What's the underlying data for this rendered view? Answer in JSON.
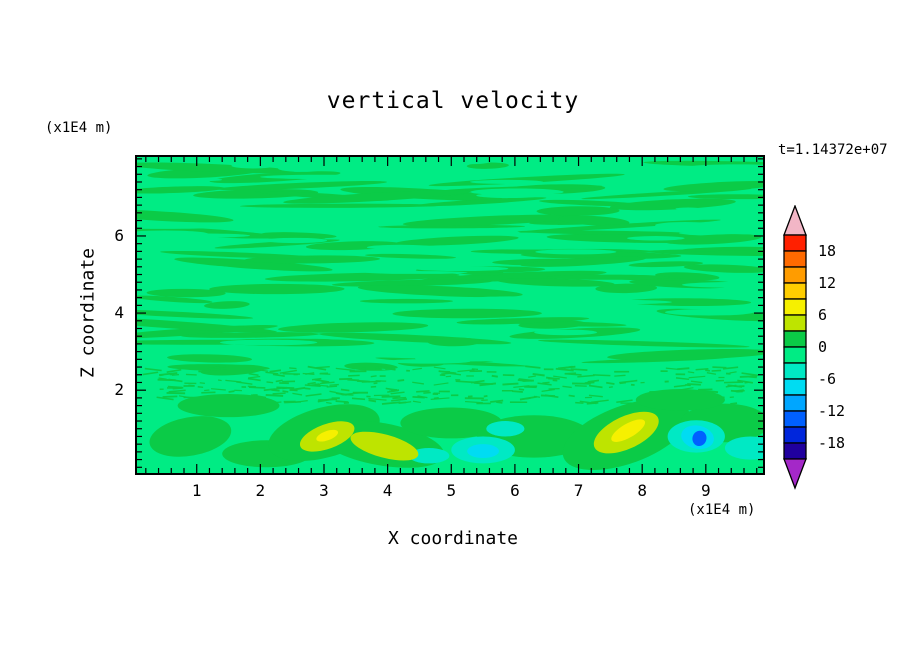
{
  "chart_data": {
    "type": "heatmap",
    "title": "vertical velocity",
    "xlabel": "X coordinate",
    "ylabel": "Z coordinate",
    "x_units": "(x1E4 m)",
    "y_units": "(x1E4 m)",
    "time_annotation": "t=1.14372e+07",
    "xlim": [
      0.03,
      9.93
    ],
    "zlim": [
      -0.2,
      8.1
    ],
    "x_ticks": [
      1,
      2,
      3,
      4,
      5,
      6,
      7,
      8,
      9
    ],
    "y_ticks": [
      2,
      4,
      6
    ],
    "minor_tick_step": 0.2,
    "background_level_color": "#00EC84",
    "contour_green": "#0BCB47",
    "frame_color": "#000000",
    "field_summary": "Mostly near-zero vertical velocity (spring green) with elongated positive streaks aloft, a finely rippled band near z=2, and stronger updraft (yellow) and downdraft (cyan/blue) cells below z=2.",
    "colorbar": {
      "boundaries": [
        21,
        18,
        15,
        12,
        9,
        6,
        3,
        0,
        -3,
        -6,
        -9,
        -12,
        -15,
        -18,
        -21
      ],
      "colors": [
        "#FF2000",
        "#FF6A00",
        "#FF9C00",
        "#FFCE00",
        "#F6F000",
        "#BEE400",
        "#0BCB47",
        "#00EC84",
        "#00E9C4",
        "#00DCF2",
        "#00A6FF",
        "#0060FF",
        "#0026DC",
        "#20009E"
      ],
      "over_color": "#F2B6C6",
      "under_color": "#A428C8",
      "tick_labels": [
        "18",
        "12",
        "6",
        "0",
        "-6",
        "-12",
        "-18"
      ]
    },
    "texture": {
      "seed": 42,
      "streaks": 95,
      "holes": 40,
      "speckles": 300,
      "streak_zone": [
        2.5,
        7.95
      ],
      "speckle_zone": [
        1.65,
        2.6
      ]
    },
    "features": [
      {
        "x": 0.9,
        "z": 0.8,
        "rx": 0.65,
        "rz": 0.5,
        "rot": -10,
        "level": 1.5
      },
      {
        "x": 2.1,
        "z": 0.35,
        "rx": 0.7,
        "rz": 0.35,
        "rot": 0,
        "level": 1.5
      },
      {
        "x": 3.0,
        "z": 0.9,
        "rx": 0.9,
        "rz": 0.65,
        "rot": -15,
        "level": 1.5
      },
      {
        "x": 3.9,
        "z": 0.6,
        "rx": 1.0,
        "rz": 0.55,
        "rot": 10,
        "level": 1.5
      },
      {
        "x": 5.0,
        "z": 1.15,
        "rx": 0.8,
        "rz": 0.4,
        "rot": 0,
        "level": 1.5
      },
      {
        "x": 6.3,
        "z": 0.8,
        "rx": 0.9,
        "rz": 0.55,
        "rot": 0,
        "level": 1.5
      },
      {
        "x": 7.75,
        "z": 0.85,
        "rx": 1.05,
        "rz": 0.75,
        "rot": -20,
        "level": 1.5
      },
      {
        "x": 9.3,
        "z": 1.15,
        "rx": 0.7,
        "rz": 0.5,
        "rot": 0,
        "level": 1.5
      },
      {
        "x": 1.5,
        "z": 1.6,
        "rx": 0.8,
        "rz": 0.3,
        "rot": 0,
        "level": 1.5
      },
      {
        "x": 8.6,
        "z": 1.75,
        "rx": 0.7,
        "rz": 0.28,
        "rot": 0,
        "level": 1.5
      },
      {
        "x": 4.65,
        "z": 0.3,
        "rx": 0.32,
        "rz": 0.2,
        "rot": 0,
        "level": -4.5
      },
      {
        "x": 5.5,
        "z": 0.45,
        "rx": 0.5,
        "rz": 0.35,
        "rot": 0,
        "level": -4.5
      },
      {
        "x": 5.85,
        "z": 1.0,
        "rx": 0.3,
        "rz": 0.2,
        "rot": 0,
        "level": -4.5
      },
      {
        "x": 8.85,
        "z": 0.8,
        "rx": 0.45,
        "rz": 0.42,
        "rot": 0,
        "level": -4.5
      },
      {
        "x": 9.7,
        "z": 0.5,
        "rx": 0.4,
        "rz": 0.3,
        "rot": 0,
        "level": -4.5
      },
      {
        "x": 5.5,
        "z": 0.42,
        "rx": 0.25,
        "rz": 0.18,
        "rot": 0,
        "level": -7.5
      },
      {
        "x": 8.87,
        "z": 0.78,
        "rx": 0.26,
        "rz": 0.3,
        "rot": 12,
        "level": -7.5
      },
      {
        "x": 8.9,
        "z": 0.75,
        "rx": 0.11,
        "rz": 0.2,
        "rot": 15,
        "level": -13
      },
      {
        "x": 3.05,
        "z": 0.8,
        "rx": 0.45,
        "rz": 0.32,
        "rot": -20,
        "level": 4.5
      },
      {
        "x": 3.95,
        "z": 0.55,
        "rx": 0.55,
        "rz": 0.3,
        "rot": 15,
        "level": 4.5
      },
      {
        "x": 7.75,
        "z": 0.9,
        "rx": 0.55,
        "rz": 0.42,
        "rot": -25,
        "level": 4.5
      },
      {
        "x": 3.05,
        "z": 0.82,
        "rx": 0.18,
        "rz": 0.12,
        "rot": -20,
        "level": 7.5
      },
      {
        "x": 7.78,
        "z": 0.95,
        "rx": 0.3,
        "rz": 0.18,
        "rot": -30,
        "level": 7.5
      }
    ]
  }
}
